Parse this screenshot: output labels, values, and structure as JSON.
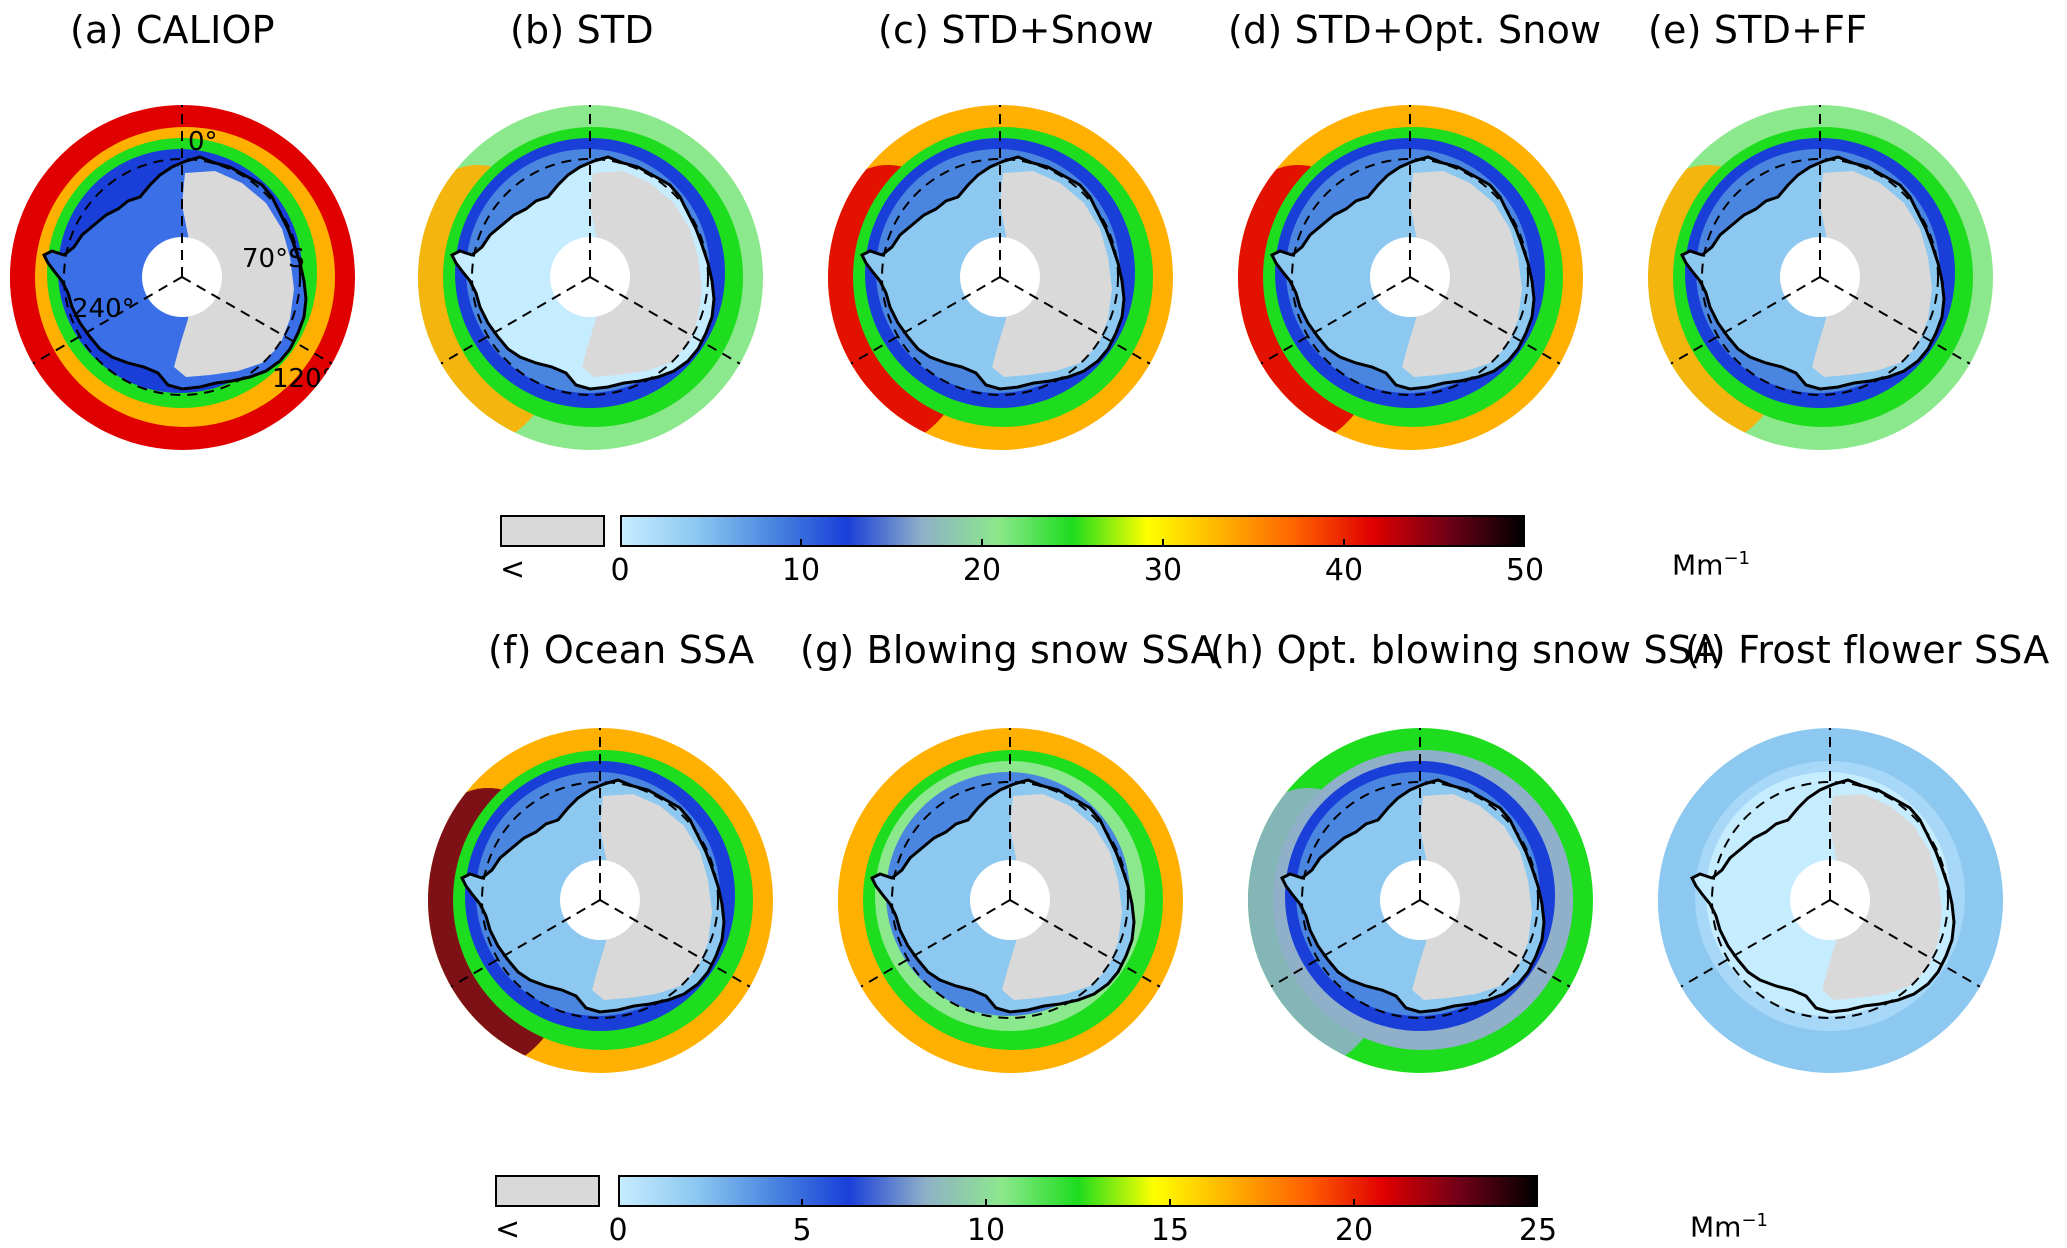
{
  "panels": [
    {
      "id": "a",
      "title": "(a) CALIOP",
      "scheme": "caliop"
    },
    {
      "id": "b",
      "title": "(b) STD",
      "scheme": "std"
    },
    {
      "id": "c",
      "title": "(c) STD+Snow",
      "scheme": "snow"
    },
    {
      "id": "d",
      "title": "(d) STD+Opt. Snow",
      "scheme": "optsnow"
    },
    {
      "id": "e",
      "title": "(e) STD+FF",
      "scheme": "ff"
    },
    {
      "id": "f",
      "title": "(f) Ocean SSA",
      "scheme": "ocean"
    },
    {
      "id": "g",
      "title": "(g) Blowing snow SSA",
      "scheme": "blowing"
    },
    {
      "id": "h",
      "title": "(h) Opt. blowing snow SSA",
      "scheme": "optblowing"
    },
    {
      "id": "i",
      "title": "(i) Frost flower SSA",
      "scheme": "frost"
    }
  ],
  "map_labels": {
    "lon0": "0°",
    "lat70": "70°S",
    "lon240": "240°",
    "lon120": "120°"
  },
  "colorbars": [
    {
      "below_label": "<",
      "ticks": [
        "0",
        "10",
        "20",
        "30",
        "40",
        "50"
      ],
      "min": 0,
      "max": 50,
      "unit": "Mm",
      "unit_exp": "−1"
    },
    {
      "below_label": "<",
      "ticks": [
        "0",
        "5",
        "10",
        "15",
        "20",
        "25"
      ],
      "min": 0,
      "max": 25,
      "unit": "Mm",
      "unit_exp": "−1"
    }
  ],
  "colormap": [
    "#c6ecff",
    "#8cc8f0",
    "#4a86e0",
    "#1a3fd9",
    "#8fb0c8",
    "#8ce88c",
    "#1edc1e",
    "#ffff00",
    "#ffb000",
    "#ff6000",
    "#e00000",
    "#700018",
    "#000000"
  ],
  "land_color": "#d9d9d9"
}
